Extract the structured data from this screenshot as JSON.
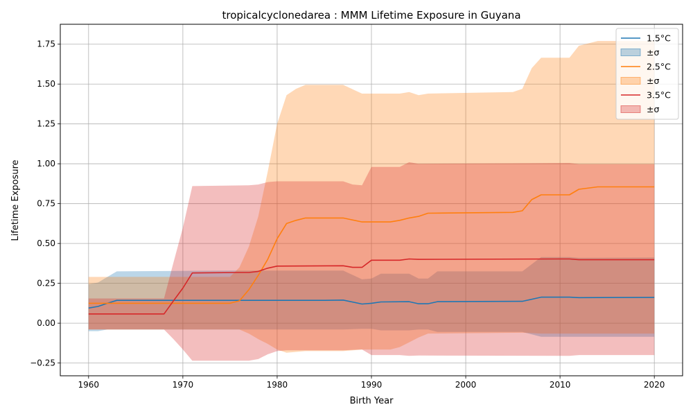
{
  "chart_data": {
    "type": "line",
    "title": "tropicalcyclonedarea : MMM Lifetime Exposure in Guyana",
    "xlabel": "Birth Year",
    "ylabel": "Lifetime Exposure",
    "xlim": [
      1957,
      2023
    ],
    "ylim": [
      -0.33,
      1.875
    ],
    "xticks": [
      1960,
      1970,
      1980,
      1990,
      2000,
      2010,
      2020
    ],
    "xtick_labels": [
      "1960",
      "1970",
      "1980",
      "1990",
      "2000",
      "2010",
      "2020"
    ],
    "yticks": [
      -0.25,
      0,
      0.25,
      0.5,
      0.75,
      1.0,
      1.25,
      1.5,
      1.75
    ],
    "ytick_labels": [
      "−0.25",
      "0.00",
      "0.25",
      "0.50",
      "0.75",
      "1.00",
      "1.25",
      "1.50",
      "1.75"
    ],
    "grid": true,
    "legend_position": "top-right",
    "series": [
      {
        "name": "1.5°C",
        "band_label": "±σ",
        "color": "#1f77b4",
        "band_color": "#1f77b4",
        "band_alpha": 0.3,
        "points": [
          [
            1960,
            0.095
          ],
          [
            1961,
            0.105
          ],
          [
            1962,
            0.125
          ],
          [
            1963,
            0.143
          ],
          [
            1968,
            0.143
          ],
          [
            1975,
            0.143
          ],
          [
            1980,
            0.143
          ],
          [
            1985,
            0.143
          ],
          [
            1987,
            0.145
          ],
          [
            1989,
            0.12
          ],
          [
            1990,
            0.125
          ],
          [
            1991,
            0.133
          ],
          [
            1994,
            0.135
          ],
          [
            1995,
            0.122
          ],
          [
            1996,
            0.122
          ],
          [
            1997,
            0.135
          ],
          [
            2006,
            0.137
          ],
          [
            2008,
            0.163
          ],
          [
            2011,
            0.163
          ],
          [
            2012,
            0.16
          ],
          [
            2020,
            0.162
          ]
        ],
        "upper": [
          [
            1960,
            0.245
          ],
          [
            1961,
            0.255
          ],
          [
            1962,
            0.29
          ],
          [
            1963,
            0.325
          ],
          [
            1975,
            0.33
          ],
          [
            1987,
            0.33
          ],
          [
            1989,
            0.275
          ],
          [
            1990,
            0.28
          ],
          [
            1991,
            0.31
          ],
          [
            1994,
            0.31
          ],
          [
            1995,
            0.28
          ],
          [
            1996,
            0.28
          ],
          [
            1997,
            0.325
          ],
          [
            2006,
            0.325
          ],
          [
            2008,
            0.415
          ],
          [
            2011,
            0.415
          ],
          [
            2012,
            0.41
          ],
          [
            2020,
            0.412
          ]
        ],
        "lower": [
          [
            1960,
            -0.05
          ],
          [
            1961,
            -0.05
          ],
          [
            1962,
            -0.04
          ],
          [
            1963,
            -0.04
          ],
          [
            1987,
            -0.04
          ],
          [
            1989,
            -0.035
          ],
          [
            1990,
            -0.035
          ],
          [
            1991,
            -0.045
          ],
          [
            1994,
            -0.045
          ],
          [
            1995,
            -0.04
          ],
          [
            1996,
            -0.04
          ],
          [
            1997,
            -0.055
          ],
          [
            2006,
            -0.055
          ],
          [
            2008,
            -0.085
          ],
          [
            2011,
            -0.085
          ],
          [
            2012,
            -0.085
          ],
          [
            2020,
            -0.085
          ]
        ]
      },
      {
        "name": "2.5°C",
        "band_label": "±σ",
        "color": "#ff7f0e",
        "band_color": "#ff7f0e",
        "band_alpha": 0.3,
        "points": [
          [
            1960,
            0.125
          ],
          [
            1963,
            0.125
          ],
          [
            1968,
            0.125
          ],
          [
            1975,
            0.125
          ],
          [
            1976,
            0.14
          ],
          [
            1977,
            0.21
          ],
          [
            1978,
            0.3
          ],
          [
            1979,
            0.4
          ],
          [
            1980,
            0.53
          ],
          [
            1981,
            0.625
          ],
          [
            1982,
            0.645
          ],
          [
            1983,
            0.66
          ],
          [
            1987,
            0.66
          ],
          [
            1989,
            0.635
          ],
          [
            1992,
            0.635
          ],
          [
            1993,
            0.645
          ],
          [
            1994,
            0.66
          ],
          [
            1995,
            0.67
          ],
          [
            1996,
            0.69
          ],
          [
            2005,
            0.695
          ],
          [
            2006,
            0.705
          ],
          [
            2007,
            0.775
          ],
          [
            2008,
            0.805
          ],
          [
            2011,
            0.805
          ],
          [
            2012,
            0.84
          ],
          [
            2014,
            0.855
          ],
          [
            2020,
            0.855
          ]
        ],
        "upper": [
          [
            1960,
            0.29
          ],
          [
            1975,
            0.29
          ],
          [
            1976,
            0.35
          ],
          [
            1977,
            0.48
          ],
          [
            1978,
            0.67
          ],
          [
            1979,
            0.95
          ],
          [
            1980,
            1.25
          ],
          [
            1981,
            1.43
          ],
          [
            1982,
            1.47
          ],
          [
            1983,
            1.495
          ],
          [
            1987,
            1.495
          ],
          [
            1989,
            1.44
          ],
          [
            1993,
            1.44
          ],
          [
            1994,
            1.45
          ],
          [
            1995,
            1.43
          ],
          [
            1996,
            1.44
          ],
          [
            2005,
            1.45
          ],
          [
            2006,
            1.47
          ],
          [
            2007,
            1.6
          ],
          [
            2008,
            1.665
          ],
          [
            2011,
            1.665
          ],
          [
            2012,
            1.74
          ],
          [
            2014,
            1.77
          ],
          [
            2020,
            1.77
          ]
        ],
        "lower": [
          [
            1960,
            -0.04
          ],
          [
            1976,
            -0.04
          ],
          [
            1977,
            -0.065
          ],
          [
            1978,
            -0.1
          ],
          [
            1979,
            -0.13
          ],
          [
            1980,
            -0.165
          ],
          [
            1981,
            -0.185
          ],
          [
            1983,
            -0.175
          ],
          [
            1987,
            -0.175
          ],
          [
            1989,
            -0.165
          ],
          [
            1990,
            -0.165
          ],
          [
            1992,
            -0.165
          ],
          [
            1993,
            -0.15
          ],
          [
            1994,
            -0.12
          ],
          [
            1995,
            -0.09
          ],
          [
            1996,
            -0.065
          ],
          [
            2006,
            -0.06
          ],
          [
            2008,
            -0.065
          ],
          [
            2012,
            -0.065
          ],
          [
            2020,
            -0.065
          ]
        ]
      },
      {
        "name": "3.5°C",
        "band_label": "±σ",
        "color": "#d62728",
        "band_color": "#d62728",
        "band_alpha": 0.3,
        "points": [
          [
            1960,
            0.058
          ],
          [
            1968,
            0.058
          ],
          [
            1969,
            0.14
          ],
          [
            1970,
            0.22
          ],
          [
            1971,
            0.315
          ],
          [
            1976,
            0.318
          ],
          [
            1977,
            0.318
          ],
          [
            1978,
            0.325
          ],
          [
            1979,
            0.345
          ],
          [
            1980,
            0.358
          ],
          [
            1987,
            0.36
          ],
          [
            1988,
            0.35
          ],
          [
            1989,
            0.35
          ],
          [
            1990,
            0.395
          ],
          [
            1993,
            0.395
          ],
          [
            1994,
            0.403
          ],
          [
            1995,
            0.4
          ],
          [
            2010,
            0.403
          ],
          [
            2011,
            0.403
          ],
          [
            2012,
            0.398
          ],
          [
            2020,
            0.398
          ]
        ],
        "upper": [
          [
            1960,
            0.155
          ],
          [
            1968,
            0.155
          ],
          [
            1969,
            0.38
          ],
          [
            1970,
            0.6
          ],
          [
            1971,
            0.86
          ],
          [
            1977,
            0.865
          ],
          [
            1978,
            0.87
          ],
          [
            1979,
            0.885
          ],
          [
            1980,
            0.89
          ],
          [
            1987,
            0.89
          ],
          [
            1988,
            0.87
          ],
          [
            1989,
            0.865
          ],
          [
            1990,
            0.98
          ],
          [
            1993,
            0.98
          ],
          [
            1994,
            1.01
          ],
          [
            1995,
            1.0
          ],
          [
            2011,
            1.005
          ],
          [
            2012,
            0.998
          ],
          [
            2020,
            0.998
          ]
        ],
        "lower": [
          [
            1960,
            -0.04
          ],
          [
            1968,
            -0.04
          ],
          [
            1969,
            -0.1
          ],
          [
            1970,
            -0.165
          ],
          [
            1971,
            -0.235
          ],
          [
            1977,
            -0.235
          ],
          [
            1978,
            -0.225
          ],
          [
            1979,
            -0.195
          ],
          [
            1980,
            -0.175
          ],
          [
            1981,
            -0.17
          ],
          [
            1987,
            -0.17
          ],
          [
            1989,
            -0.165
          ],
          [
            1990,
            -0.2
          ],
          [
            1993,
            -0.2
          ],
          [
            1994,
            -0.205
          ],
          [
            1995,
            -0.203
          ],
          [
            2011,
            -0.205
          ],
          [
            2012,
            -0.2
          ],
          [
            2020,
            -0.2
          ]
        ]
      }
    ]
  }
}
